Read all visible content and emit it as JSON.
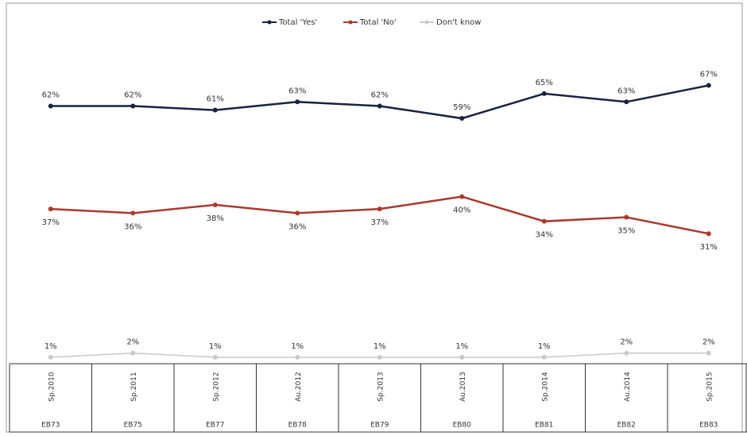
{
  "chart_data": {
    "type": "line",
    "categories": [
      "Sp.2010",
      "Sp.2011",
      "Sp.2012",
      "Au.2012",
      "Sp.2013",
      "Au.2013",
      "Sp.2014",
      "Au.2014",
      "Sp.2015"
    ],
    "survey_codes": [
      "EB73",
      "EB75",
      "EB77",
      "EB78",
      "EB79",
      "EB80",
      "EB81",
      "EB82",
      "EB83"
    ],
    "series": [
      {
        "name": "Total 'Yes'",
        "color": "#1c2140",
        "values": [
          62,
          62,
          61,
          63,
          62,
          59,
          65,
          63,
          67
        ],
        "value_labels": [
          "62%",
          "62%",
          "61%",
          "63%",
          "62%",
          "59%",
          "65%",
          "63%",
          "67%"
        ],
        "label_position": "above"
      },
      {
        "name": "Total 'No'",
        "color": "#a83a2e",
        "values": [
          37,
          36,
          38,
          36,
          37,
          40,
          34,
          35,
          31
        ],
        "value_labels": [
          "37%",
          "36%",
          "38%",
          "36%",
          "37%",
          "40%",
          "34%",
          "35%",
          "31%"
        ],
        "label_position": "below"
      },
      {
        "name": "Don't know",
        "color": "#c9c9c9",
        "values": [
          1,
          2,
          1,
          1,
          1,
          1,
          1,
          2,
          2
        ],
        "value_labels": [
          "1%",
          "2%",
          "1%",
          "1%",
          "1%",
          "1%",
          "1%",
          "2%",
          "2%"
        ],
        "label_position": "above"
      }
    ],
    "ylim": [
      0,
      70
    ],
    "grid": false,
    "legend": "top"
  }
}
